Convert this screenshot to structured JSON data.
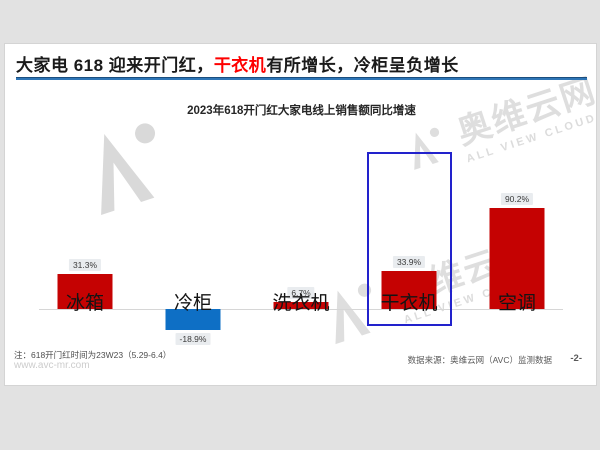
{
  "page": {
    "background_color": "#e2e2e2",
    "card_color": "#ffffff"
  },
  "headline": {
    "pre": "大家电 618 迎来开门红，",
    "highlight": "干衣机",
    "post": "有所增长，冷柜呈负增长",
    "highlight_color": "#fe0000",
    "rule_color": "#2e75b6"
  },
  "chart_data": {
    "type": "bar",
    "title": "2023年618开门红大家电线上销售额同比增速",
    "categories": [
      "冰箱",
      "冷柜",
      "洗衣机",
      "干衣机",
      "空调"
    ],
    "values": [
      31.3,
      -18.9,
      6.7,
      33.9,
      90.2
    ],
    "value_labels": [
      "31.3%",
      "-18.9%",
      "6.7%",
      "33.9%",
      "90.2%"
    ],
    "unit": "%",
    "positive_color": "#c50202",
    "negative_color": "#0e6fc5",
    "bar_colors": [
      "#c50202",
      "#0e6fc5",
      "#c50202",
      "#c50202",
      "#c50202"
    ],
    "highlighted_category": "干衣机",
    "highlight_box_color": "#2222cc",
    "ylim": [
      -25,
      100
    ],
    "grid": false,
    "legend": false,
    "baseline_color": "#d6d6d6"
  },
  "footer": {
    "note": "注：618开门红时间为23W23（5.29-6.4）",
    "website": "www.avc-mr.com",
    "source": "数据来源：奥维云网（AVC）监测数据",
    "page_number": "-2-"
  },
  "watermark": {
    "brand": "奥维云网",
    "subtitle": "ALL VIEW CLOUD",
    "logo": "avc-logo"
  }
}
